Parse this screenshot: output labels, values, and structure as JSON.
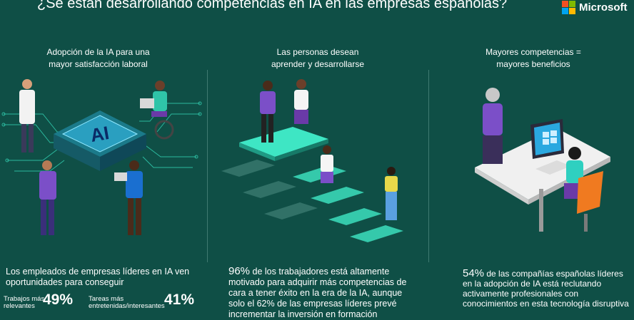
{
  "title": "¿Se están desarrollando competencias en IA en las empresas españolas?",
  "brand": {
    "name": "Microsoft",
    "colors": [
      "#f25022",
      "#7fba00",
      "#00a4ef",
      "#ffb900"
    ]
  },
  "colors": {
    "background": "#0f4f46",
    "accent": "#3ee6c4"
  },
  "sections": [
    {
      "heading_line1": "Adopción de la IA para una",
      "heading_line2": "mayor satisfacción laboral",
      "chip_label": "AI",
      "description": "Los empleados de empresas líderes en IA ven oportunidades para conseguir",
      "stats": [
        {
          "label_line1": "Trabajos más",
          "label_line2": "relevantes",
          "value": "49%"
        },
        {
          "label_line1": "Tareas más",
          "label_line2": "entretenidas/interesantes",
          "value": "41%"
        }
      ]
    },
    {
      "heading_line1": "Las personas desean",
      "heading_line2": "aprender y desarrollarse",
      "highlight": "96%",
      "description": "de los trabajadores está altamente motivado para adquirir más competencias de cara a tener éxito en la era de la IA, aunque solo el 62% de las empresas líderes prevé incrementar la inversión en formación"
    },
    {
      "heading_line1": "Mayores competencias =",
      "heading_line2": "mayores beneficios",
      "highlight": "54%",
      "description": "de las compañías españolas líderes en la adopción de IA está reclutando activamente profesionales con conocimientos en esta tecnología disruptiva"
    }
  ]
}
